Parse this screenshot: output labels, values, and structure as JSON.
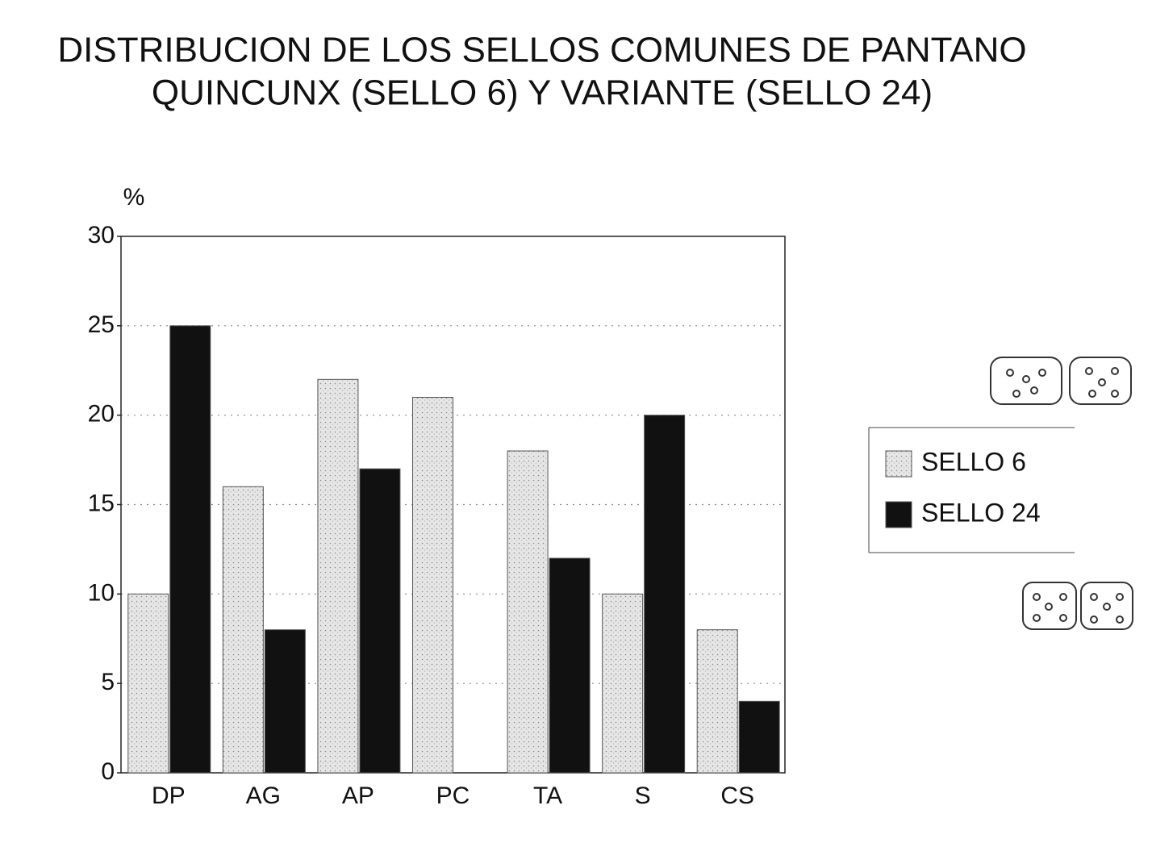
{
  "chart_data": {
    "type": "bar",
    "title": [
      "DISTRIBUCION DE LOS SELLOS COMUNES DE PANTANO",
      "QUINCUNX (SELLO 6) Y VARIANTE (SELLO 24)"
    ],
    "y_label": "%",
    "categories": [
      "DP",
      "AG",
      "AP",
      "PC",
      "TA",
      "S",
      "CS"
    ],
    "series": [
      {
        "name": "SELLO 6",
        "color": "#dcdcdc",
        "values": [
          10,
          16,
          22,
          21,
          18,
          10,
          8
        ]
      },
      {
        "name": "SELLO 24",
        "color": "#111111",
        "values": [
          25,
          8,
          17,
          null,
          12,
          20,
          4
        ]
      }
    ],
    "ylim": [
      0,
      30
    ],
    "yticks": [
      0,
      5,
      10,
      15,
      20,
      25,
      30
    ],
    "grid": true,
    "legend": "right"
  }
}
